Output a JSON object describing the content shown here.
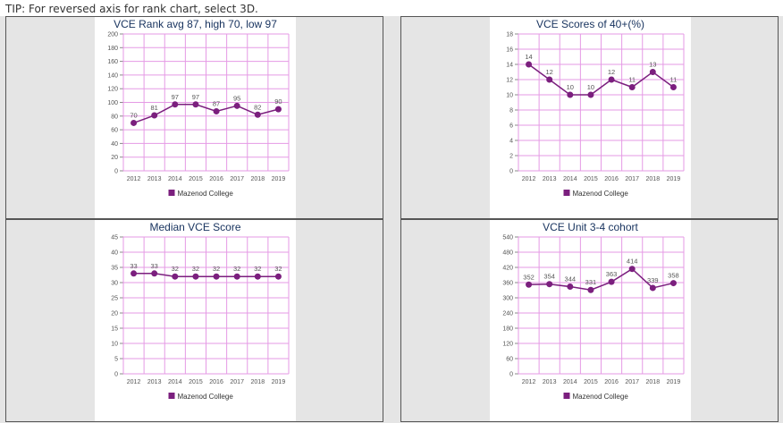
{
  "tip": "TIP: For reversed axis for rank chart, select 3D.",
  "colors": {
    "series": "#7b1f7e",
    "grid": "#e59ae5"
  },
  "chart_data": [
    {
      "type": "line",
      "title": "VCE Rank avg 87, high 70, low 97",
      "categories": [
        "2012",
        "2013",
        "2014",
        "2015",
        "2016",
        "2017",
        "2018",
        "2019"
      ],
      "series": [
        {
          "name": "Mazenod College",
          "values": [
            70,
            81,
            97,
            97,
            87,
            95,
            82,
            90
          ]
        }
      ],
      "ylim": [
        0,
        200
      ],
      "yticks": [
        0,
        20,
        40,
        60,
        80,
        100,
        120,
        140,
        160,
        180,
        200
      ],
      "grid": true,
      "legend": "bottom"
    },
    {
      "type": "line",
      "title": "VCE Scores of 40+(%)",
      "categories": [
        "2012",
        "2013",
        "2014",
        "2015",
        "2016",
        "2017",
        "2018",
        "2019"
      ],
      "series": [
        {
          "name": "Mazenod College",
          "values": [
            14,
            12,
            10,
            10,
            12,
            11,
            13,
            11
          ]
        }
      ],
      "ylim": [
        0,
        18
      ],
      "yticks": [
        0,
        2,
        4,
        6,
        8,
        10,
        12,
        14,
        16,
        18
      ],
      "grid": true,
      "legend": "bottom"
    },
    {
      "type": "line",
      "title": "Median VCE Score",
      "categories": [
        "2012",
        "2013",
        "2014",
        "2015",
        "2016",
        "2017",
        "2018",
        "2019"
      ],
      "series": [
        {
          "name": "Mazenod College",
          "values": [
            33,
            33,
            32,
            32,
            32,
            32,
            32,
            32
          ]
        }
      ],
      "ylim": [
        0,
        45
      ],
      "yticks": [
        0,
        5,
        10,
        15,
        20,
        25,
        30,
        35,
        40,
        45
      ],
      "grid": true,
      "legend": "bottom"
    },
    {
      "type": "line",
      "title": "VCE Unit 3-4 cohort",
      "categories": [
        "2012",
        "2013",
        "2014",
        "2015",
        "2016",
        "2017",
        "2018",
        "2019"
      ],
      "series": [
        {
          "name": "Mazenod College",
          "values": [
            352,
            354,
            344,
            331,
            363,
            414,
            339,
            358
          ]
        }
      ],
      "ylim": [
        0,
        540
      ],
      "yticks": [
        0,
        60,
        120,
        180,
        240,
        300,
        360,
        420,
        480,
        540
      ],
      "grid": true,
      "legend": "bottom"
    }
  ]
}
